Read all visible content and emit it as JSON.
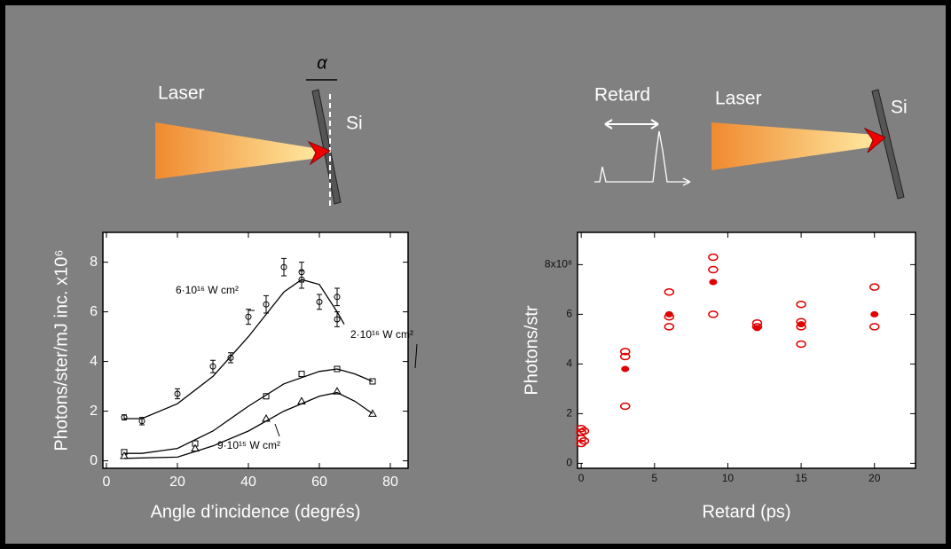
{
  "chart_data": [
    {
      "type": "scatter",
      "x_label": "Angle d’incidence (degrés)",
      "y_label": "Photons/ster/mJ inc. x10⁶",
      "xlim": [
        -1,
        85
      ],
      "ylim": [
        -0.3,
        9.2
      ],
      "xticks": [
        0,
        20,
        40,
        60,
        80
      ],
      "yticks": [
        0,
        2,
        4,
        6,
        8
      ],
      "annotations": [
        "6·10¹⁶ W cm²",
        "2·10¹⁶ W cm²",
        "9·10¹⁵ W cm²"
      ],
      "series": [
        {
          "mode": "markers",
          "marker": "circle",
          "color": "#000000",
          "x": [
            5,
            10,
            20,
            30,
            35,
            40,
            45,
            50,
            55,
            55,
            60,
            65,
            65
          ],
          "values": [
            1.75,
            1.6,
            2.7,
            3.8,
            4.15,
            5.8,
            6.3,
            7.8,
            7.6,
            7.3,
            6.4,
            6.6,
            5.7
          ],
          "errors": [
            0.1,
            0.15,
            0.2,
            0.25,
            0.2,
            0.3,
            0.35,
            0.35,
            0.4,
            0.35,
            0.3,
            0.35,
            0.3
          ]
        },
        {
          "mode": "line",
          "color": "#000000",
          "x": [
            5,
            10,
            20,
            30,
            40,
            50,
            55,
            60,
            65,
            67
          ],
          "values": [
            1.7,
            1.7,
            2.3,
            3.4,
            5.0,
            6.8,
            7.3,
            7.1,
            6.0,
            5.5
          ]
        },
        {
          "mode": "markers",
          "marker": "square",
          "color": "#000000",
          "x": [
            5,
            25,
            45,
            55,
            65,
            75
          ],
          "values": [
            0.35,
            0.7,
            2.6,
            3.5,
            3.7,
            3.2
          ]
        },
        {
          "mode": "line",
          "color": "#000000",
          "x": [
            5,
            10,
            20,
            30,
            40,
            50,
            60,
            65,
            70,
            75
          ],
          "values": [
            0.3,
            0.3,
            0.5,
            1.2,
            2.2,
            3.1,
            3.6,
            3.7,
            3.5,
            3.2
          ]
        },
        {
          "mode": "markers",
          "marker": "triangle",
          "color": "#000000",
          "x": [
            5,
            25,
            45,
            55,
            65,
            75
          ],
          "values": [
            0.2,
            0.5,
            1.7,
            2.4,
            2.8,
            1.9
          ]
        },
        {
          "mode": "line",
          "color": "#000000",
          "x": [
            5,
            20,
            30,
            40,
            50,
            60,
            65,
            70,
            75
          ],
          "values": [
            0.1,
            0.15,
            0.6,
            1.2,
            2.0,
            2.6,
            2.75,
            2.4,
            1.9
          ]
        }
      ]
    },
    {
      "type": "scatter",
      "x_label": "Retard (ps)",
      "y_label": "Photons/str",
      "xlim": [
        -0.25,
        22.8
      ],
      "ylim": [
        -0.2,
        9.3
      ],
      "xticks": [
        0,
        5,
        10,
        15,
        20
      ],
      "yticks": [
        0,
        2,
        4,
        6,
        {
          "value": 8,
          "label": "8x10⁸"
        }
      ],
      "series": [
        {
          "mode": "markers",
          "marker": "circle",
          "color": "#e00000",
          "x": [
            0,
            0,
            0,
            0,
            0.2,
            0.2,
            3,
            3,
            3,
            6,
            6,
            6,
            9,
            9,
            9,
            12,
            12,
            15,
            15,
            15,
            15,
            20,
            20
          ],
          "values": [
            1.4,
            1.25,
            1.0,
            0.8,
            1.3,
            0.9,
            4.5,
            4.3,
            2.3,
            6.9,
            5.9,
            5.5,
            8.3,
            7.8,
            6.0,
            5.65,
            5.5,
            6.4,
            5.7,
            5.5,
            4.8,
            7.1,
            5.5
          ]
        },
        {
          "mode": "markers",
          "marker": "filled-circle",
          "color": "#e00000",
          "x": [
            3,
            6,
            9,
            12,
            15,
            20
          ],
          "values": [
            3.8,
            6.0,
            7.3,
            5.45,
            5.6,
            6.0
          ]
        }
      ]
    }
  ],
  "diagram": {
    "left": {
      "laser": "Laser",
      "target": "Si",
      "angle": "α"
    },
    "right": {
      "delay": "Retard",
      "laser": "Laser",
      "target": "Si"
    }
  }
}
